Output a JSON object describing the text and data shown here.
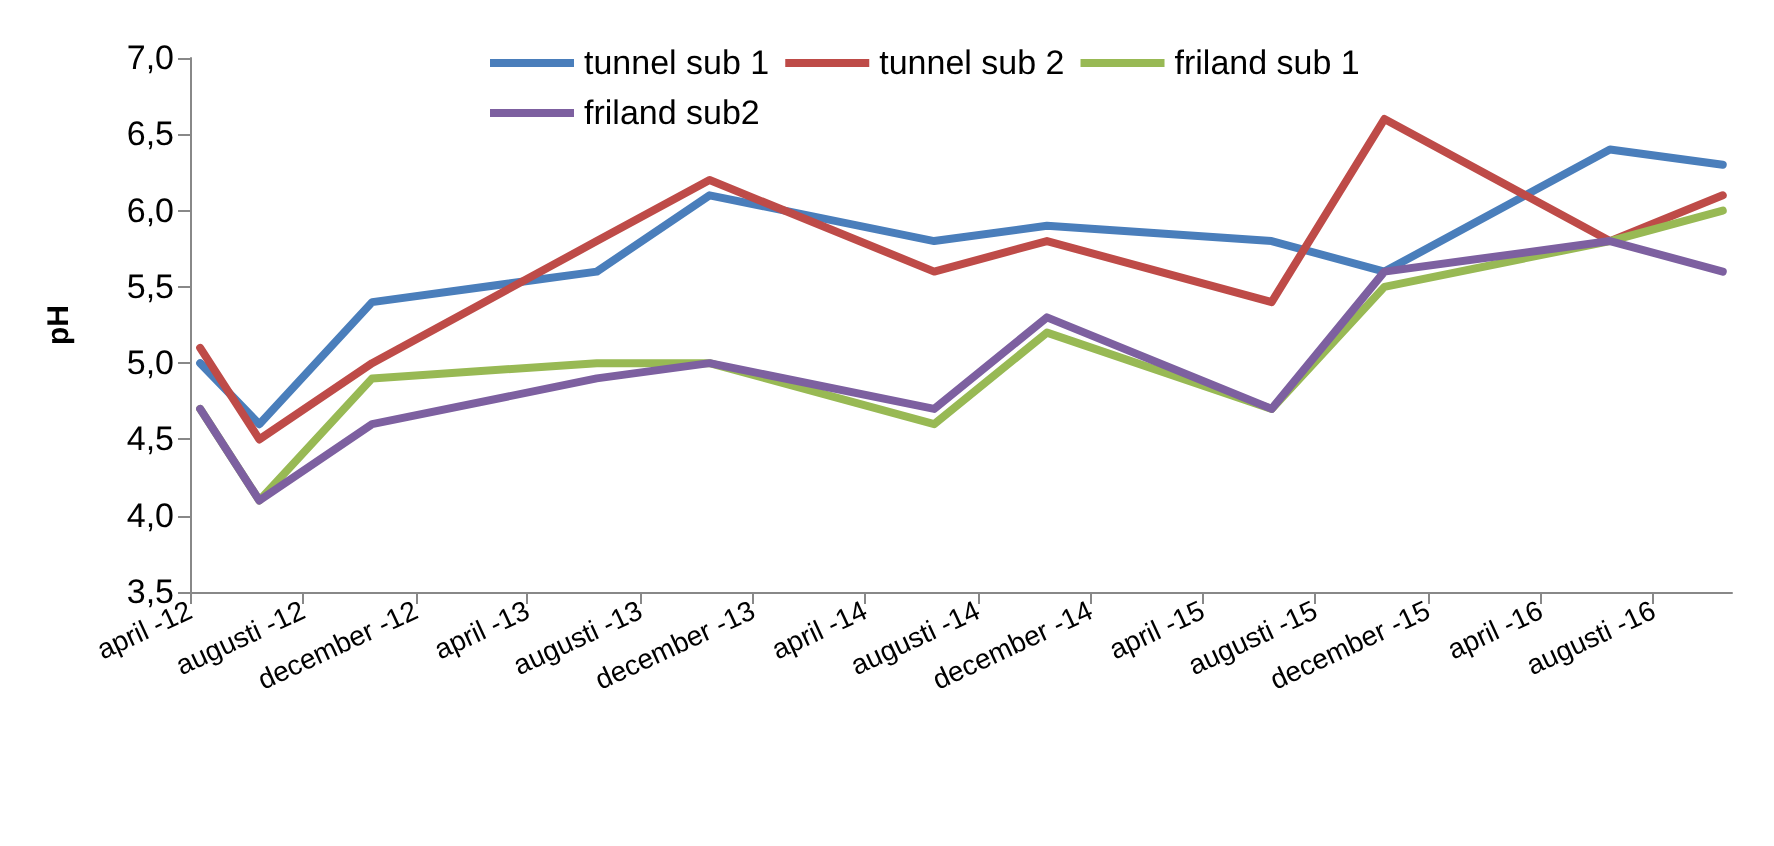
{
  "chart_data": {
    "type": "line",
    "ylabel": "pH",
    "x": [
      "2012-04-12",
      "2012-06-15",
      "2012-10-15",
      "2013-06-15",
      "2013-10-15",
      "2014-06-15",
      "2014-10-15",
      "2015-06-15",
      "2015-10-15",
      "2016-06-15",
      "2016-10-15"
    ],
    "series": [
      {
        "name": "tunnel sub 1",
        "color": "#4a7ebb",
        "values": [
          5.0,
          4.6,
          5.4,
          5.6,
          6.1,
          5.8,
          5.9,
          5.8,
          5.6,
          6.4,
          6.3
        ]
      },
      {
        "name": "tunnel sub 2",
        "color": "#be4b48",
        "values": [
          5.1,
          4.5,
          5.0,
          5.8,
          6.2,
          5.6,
          5.8,
          5.4,
          6.6,
          5.8,
          6.1
        ]
      },
      {
        "name": "friland sub 1",
        "color": "#98b954",
        "values": [
          4.7,
          4.1,
          4.9,
          5.0,
          5.0,
          4.6,
          5.2,
          4.7,
          5.5,
          5.8,
          6.0
        ]
      },
      {
        "name": "friland sub2",
        "color": "#7d60a0",
        "values": [
          4.7,
          4.1,
          4.6,
          4.9,
          5.0,
          4.7,
          5.3,
          4.7,
          5.6,
          5.8,
          5.6
        ]
      }
    ],
    "xlim": [
      "2012-04-01",
      "2016-10-25"
    ],
    "xticks": [
      {
        "value": "2012-04-01",
        "label": "april -12"
      },
      {
        "value": "2012-08-01",
        "label": "augusti -12"
      },
      {
        "value": "2012-12-01",
        "label": "december -12"
      },
      {
        "value": "2013-04-01",
        "label": "april -13"
      },
      {
        "value": "2013-08-01",
        "label": "augusti -13"
      },
      {
        "value": "2013-12-01",
        "label": "december -13"
      },
      {
        "value": "2014-04-01",
        "label": "april -14"
      },
      {
        "value": "2014-08-01",
        "label": "augusti -14"
      },
      {
        "value": "2014-12-01",
        "label": "december -14"
      },
      {
        "value": "2015-04-01",
        "label": "april -15"
      },
      {
        "value": "2015-08-01",
        "label": "augusti -15"
      },
      {
        "value": "2015-12-01",
        "label": "december -15"
      },
      {
        "value": "2016-04-01",
        "label": "april -16"
      },
      {
        "value": "2016-08-01",
        "label": "augusti -16"
      }
    ],
    "ylim": [
      3.5,
      7.0
    ],
    "yticks": [
      {
        "value": 3.5,
        "label": "3,5"
      },
      {
        "value": 4.0,
        "label": "4,0"
      },
      {
        "value": 4.5,
        "label": "4,5"
      },
      {
        "value": 5.0,
        "label": "5,0"
      },
      {
        "value": 5.5,
        "label": "5,5"
      },
      {
        "value": 6.0,
        "label": "6,0"
      },
      {
        "value": 6.5,
        "label": "6,5"
      },
      {
        "value": 7.0,
        "label": "7,0"
      }
    ],
    "grid": false,
    "legend": "top",
    "marker": "none",
    "line_style": "solid"
  }
}
